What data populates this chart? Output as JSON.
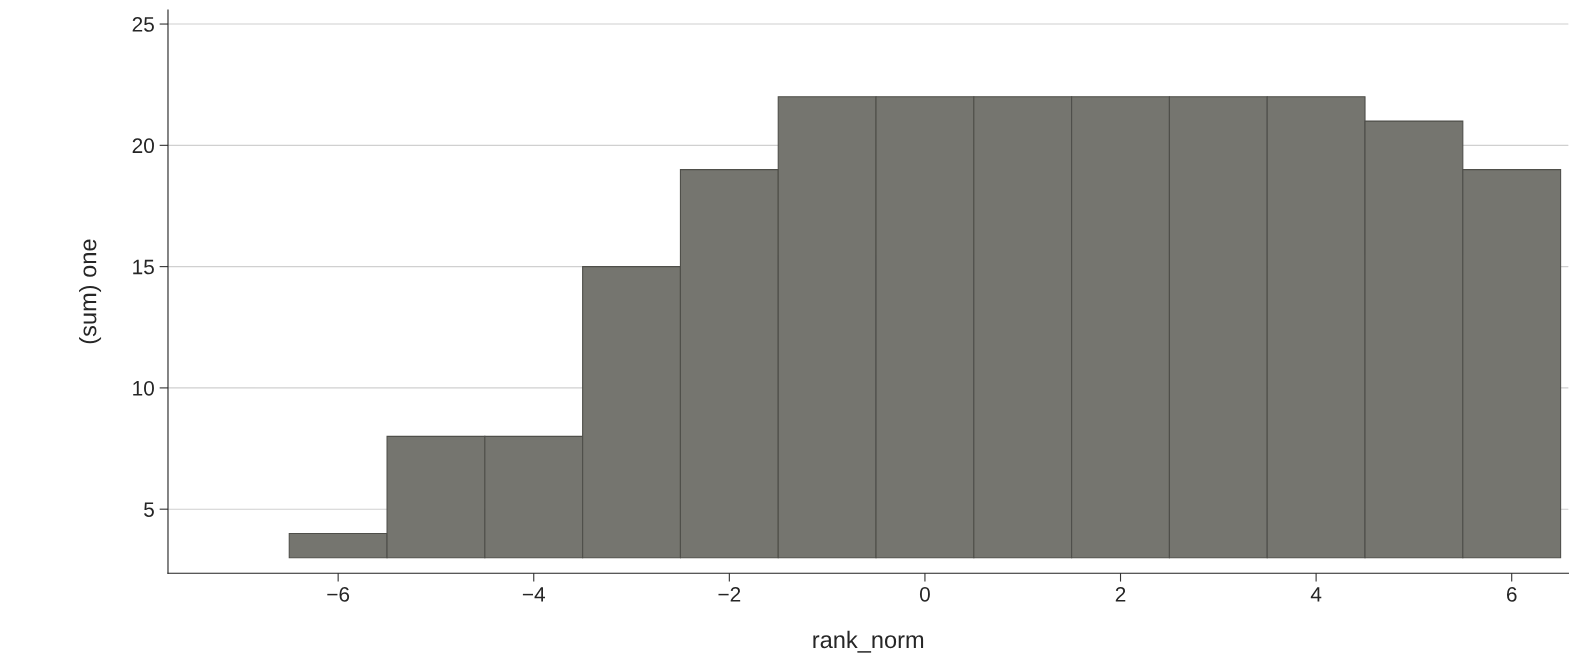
{
  "chart_data": {
    "type": "bar",
    "xlabel": "rank_norm",
    "ylabel": "(sum) one",
    "x": [
      -6,
      -5,
      -4,
      -3,
      -2,
      -1,
      0,
      1,
      2,
      3,
      4,
      5,
      6
    ],
    "base": [
      3,
      3,
      3,
      3,
      3,
      3,
      3,
      3,
      3,
      3,
      3,
      3,
      3
    ],
    "values": [
      1,
      5,
      5,
      12,
      16,
      19,
      19,
      19,
      19,
      19,
      19,
      18,
      16
    ],
    "color": "#75756f",
    "xlim": [
      -7.74,
      6.58
    ],
    "ylim": [
      2.36,
      25.58
    ],
    "xticks": [
      -6,
      -4,
      -2,
      0,
      2,
      4,
      6
    ],
    "yticks": [
      5,
      10,
      15,
      20,
      25
    ],
    "grid": "y"
  }
}
